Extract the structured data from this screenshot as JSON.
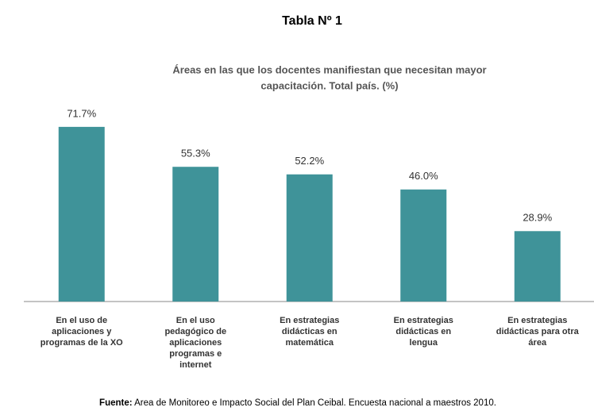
{
  "heading": "Tabla Nº 1",
  "chart_data": {
    "type": "bar",
    "title": [
      "Áreas en las que los docentes manifiestan que necesitan mayor",
      "capacitación. Total país. (%)"
    ],
    "categories": [
      [
        "En el uso de",
        "aplicaciones y",
        "programas de la XO"
      ],
      [
        "En el uso",
        "pedagógico de",
        "aplicaciones",
        "programas e",
        "internet"
      ],
      [
        "En estrategias",
        "didácticas en",
        "matemática"
      ],
      [
        "En estrategias",
        "didácticas en",
        "lengua"
      ],
      [
        "En estrategias",
        "didácticas para otra",
        "área"
      ]
    ],
    "values": [
      71.7,
      55.3,
      52.2,
      46.0,
      28.9
    ],
    "value_labels": [
      "71.7%",
      "55.3%",
      "52.2%",
      "46.0%",
      "28.9%"
    ],
    "color": "#3f9399"
  },
  "source": {
    "label": "Fuente:",
    "text": "Area de Monitoreo e Impacto Social del Plan Ceibal. Encuesta nacional a maestros 2010."
  }
}
